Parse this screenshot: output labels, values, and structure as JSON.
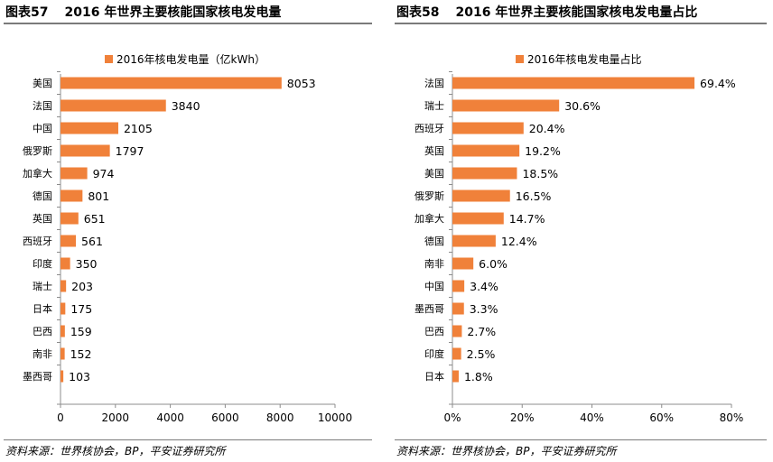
{
  "charts": [
    {
      "figure_label": "图表57",
      "figure_title": "2016 年世界主要核能国家核电发电量",
      "source": "资料来源：世界核协会，BP，平安证券研究所"
    },
    {
      "figure_label": "图表58",
      "figure_title": "2016 年世界主要核能国家核电发电量占比",
      "source": "资料来源：世界核协会，BP，平安证券研究所"
    }
  ],
  "colors": {
    "bar": "#f0813a",
    "axis": "#8c8c8c",
    "rule": "#7a7a7a"
  },
  "chart_data": [
    {
      "type": "bar",
      "orientation": "horizontal",
      "legend": "2016年核电发电量（亿kWh）",
      "legend_position": "top",
      "categories": [
        "美国",
        "法国",
        "中国",
        "俄罗斯",
        "加拿大",
        "德国",
        "英国",
        "西班牙",
        "印度",
        "瑞士",
        "日本",
        "巴西",
        "南非",
        "墨西哥"
      ],
      "values": [
        8053,
        3840,
        2105,
        1797,
        974,
        801,
        651,
        561,
        350,
        203,
        175,
        159,
        152,
        103
      ],
      "value_labels": [
        "8053",
        "3840",
        "2105",
        "1797",
        "974",
        "801",
        "651",
        "561",
        "350",
        "203",
        "175",
        "159",
        "152",
        "103"
      ],
      "xlim": [
        0,
        10000
      ],
      "xticks": [
        0,
        2000,
        4000,
        6000,
        8000,
        10000
      ],
      "xtick_labels": [
        "0",
        "2000",
        "4000",
        "6000",
        "8000",
        "10000"
      ],
      "grid": false
    },
    {
      "type": "bar",
      "orientation": "horizontal",
      "legend": "2016年核电发电量占比",
      "legend_position": "top",
      "categories": [
        "法国",
        "瑞士",
        "西班牙",
        "英国",
        "美国",
        "俄罗斯",
        "加拿大",
        "德国",
        "南非",
        "中国",
        "墨西哥",
        "巴西",
        "印度",
        "日本"
      ],
      "values": [
        69.4,
        30.6,
        20.4,
        19.2,
        18.5,
        16.5,
        14.7,
        12.4,
        6.0,
        3.4,
        3.3,
        2.7,
        2.5,
        1.8
      ],
      "value_labels": [
        "69.4%",
        "30.6%",
        "20.4%",
        "19.2%",
        "18.5%",
        "16.5%",
        "14.7%",
        "12.4%",
        "6.0%",
        "3.4%",
        "3.3%",
        "2.7%",
        "2.5%",
        "1.8%"
      ],
      "xlim": [
        0,
        80
      ],
      "xticks": [
        0,
        20,
        40,
        60,
        80
      ],
      "xtick_labels": [
        "0%",
        "20%",
        "40%",
        "60%",
        "80%"
      ],
      "grid": false
    }
  ]
}
